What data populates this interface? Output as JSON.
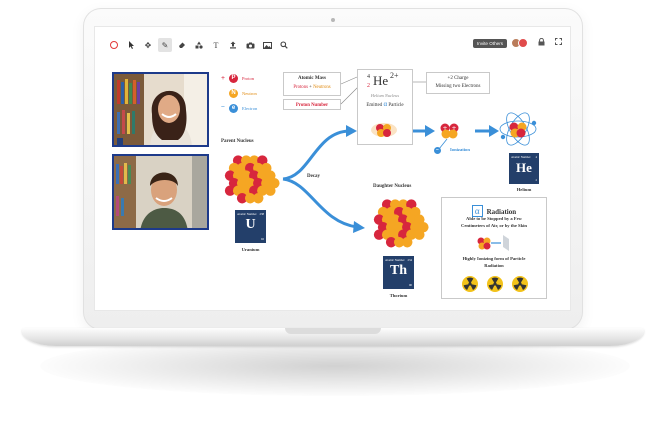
{
  "toolbar": {
    "tools": [
      "record-icon",
      "pointer-icon",
      "move-icon",
      "pen-icon",
      "eraser-icon",
      "shapes-icon",
      "text-icon",
      "upload-icon",
      "camera-icon",
      "image-icon",
      "search-icon"
    ],
    "invite_label": "Invite Others"
  },
  "legend": {
    "proton_letter": "P",
    "proton_label": "Proton",
    "neutron_letter": "N",
    "neutron_label": "Neutron",
    "electron_letter": "e",
    "electron_label": "Electron",
    "plus": "+",
    "minus": "−"
  },
  "atomic_mass_box": {
    "title": "Atomic Mass",
    "protons": "Protons",
    "plus": " + ",
    "neutrons": "Neutrons",
    "proton_number": "Proton Number"
  },
  "helium_formula": {
    "mass": "4",
    "number": "2",
    "symbol": "He",
    "charge": "2+",
    "nucleus_label": "Helium Nucleus",
    "emitted": "Emitted",
    "alpha": "α",
    "particle": "Particle"
  },
  "charge_box": {
    "line1": "+2 Charge",
    "line2": "Missing two Electrons"
  },
  "parent_nucleus_label": "Parent Nucleus",
  "decay_label": "Decay",
  "daughter_nucleus_label": "Daughter Nucleus",
  "ionization_label": "Ionization",
  "uranium": {
    "name_small": "Atomic Number",
    "num": "238",
    "symbol": "U",
    "low": "92",
    "caption": "Uranium"
  },
  "thorium": {
    "name_small": "Atomic Number",
    "num": "234",
    "symbol": "Th",
    "low": "90",
    "caption": "Thorium"
  },
  "helium": {
    "name_small": "Atomic Number",
    "num": "4",
    "symbol": "He",
    "low": "2",
    "caption": "Helium"
  },
  "radiation_box": {
    "alpha": "α",
    "title": "Radiation",
    "line1": "Able to be Stopped by a Few",
    "line2": "Centimeters of Air, or by the Skin",
    "line3": "Highly Ionizing form of Particle",
    "line4": "Radiation"
  },
  "colors": {
    "proton": "#d7263d",
    "neutron": "#f5a623",
    "electron": "#3a8fd8",
    "arrow": "#3a8fd8",
    "card": "#233f6a",
    "video_border": "#1d3a8a"
  }
}
